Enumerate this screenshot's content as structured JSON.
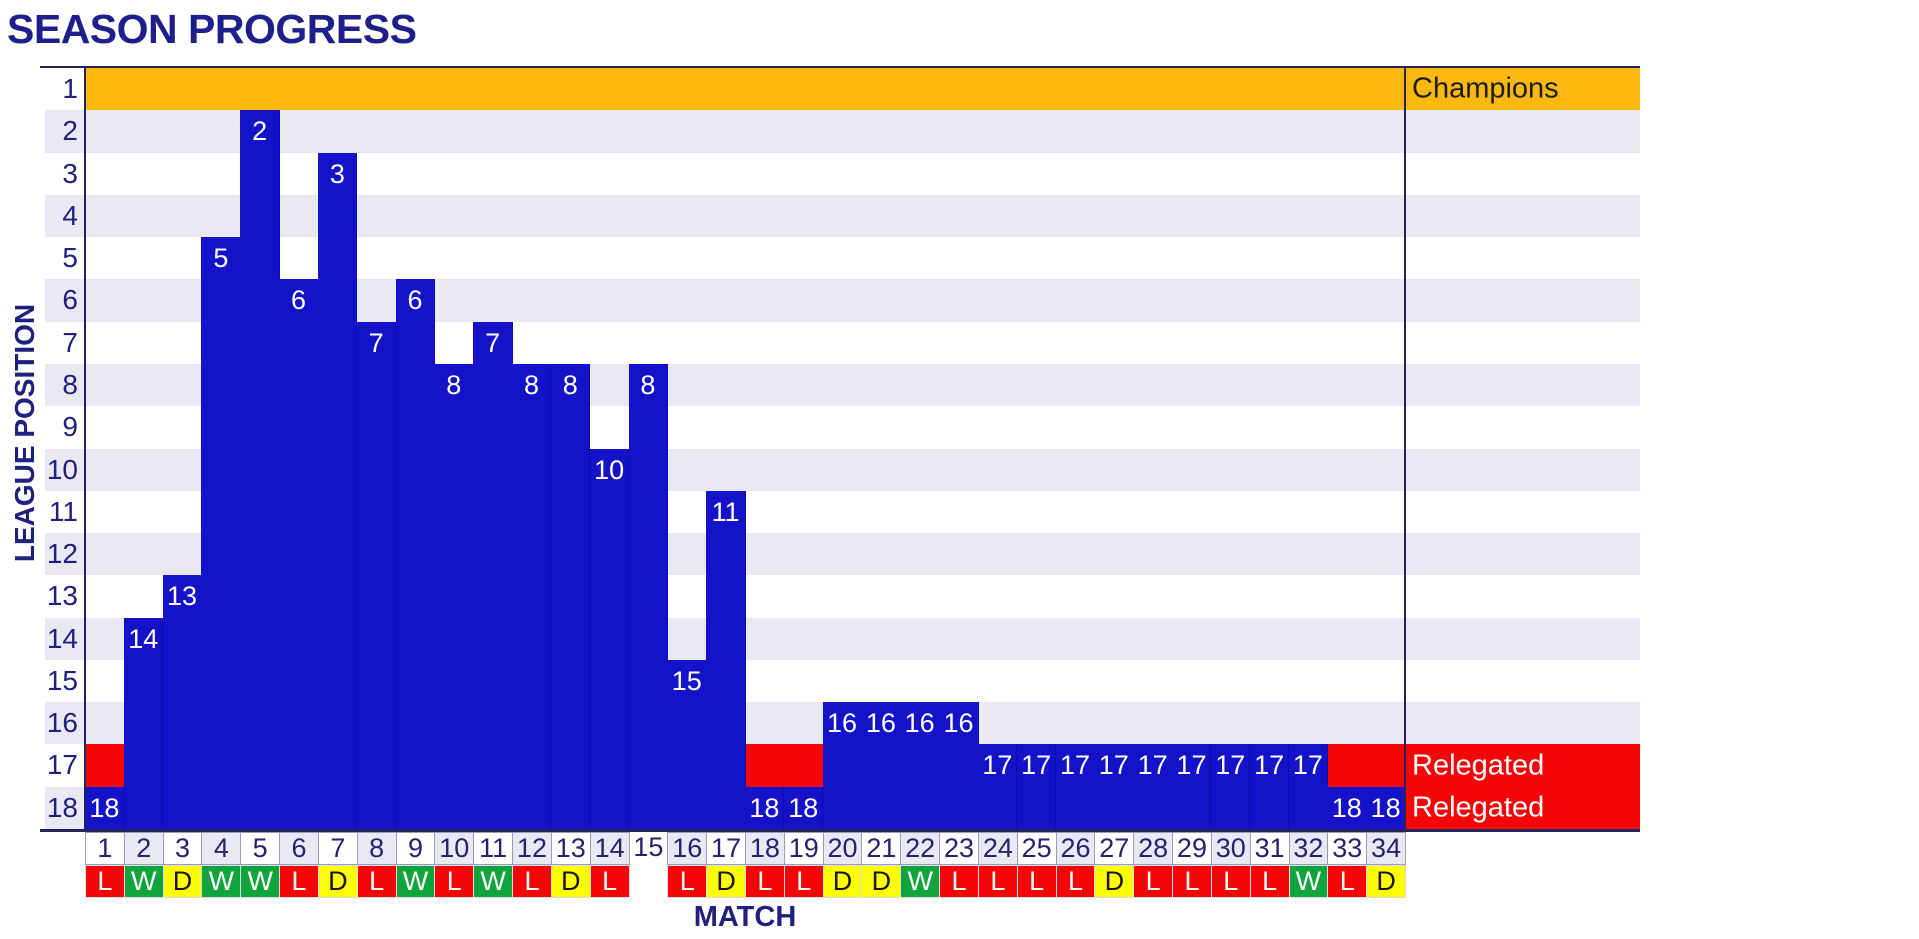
{
  "title": "SEASON PROGRESS",
  "chart_data": {
    "type": "bar",
    "title": "SEASON PROGRESS",
    "xlabel": "MATCH",
    "ylabel": "LEAGUE POSITION",
    "x_axis": {
      "label": "MATCH",
      "ticks": [
        1,
        2,
        3,
        4,
        5,
        6,
        7,
        8,
        9,
        10,
        11,
        12,
        13,
        14,
        15,
        16,
        17,
        18,
        19,
        20,
        21,
        22,
        23,
        24,
        25,
        26,
        27,
        28,
        29,
        30,
        31,
        32,
        33,
        34
      ]
    },
    "y_axis": {
      "label": "LEAGUE POSITION",
      "min": 1,
      "max": 18,
      "inverted": true,
      "ticks": [
        1,
        2,
        3,
        4,
        5,
        6,
        7,
        8,
        9,
        10,
        11,
        12,
        13,
        14,
        15,
        16,
        17,
        18
      ]
    },
    "matches": [
      1,
      2,
      3,
      4,
      5,
      6,
      7,
      8,
      9,
      10,
      11,
      12,
      13,
      14,
      15,
      16,
      17,
      18,
      19,
      20,
      21,
      22,
      23,
      24,
      25,
      26,
      27,
      28,
      29,
      30,
      31,
      32,
      33,
      34
    ],
    "positions": [
      18,
      14,
      13,
      5,
      2,
      6,
      3,
      7,
      6,
      8,
      7,
      8,
      8,
      10,
      8,
      15,
      11,
      18,
      18,
      16,
      16,
      16,
      16,
      17,
      17,
      17,
      17,
      17,
      17,
      17,
      17,
      17,
      18,
      18
    ],
    "results": [
      "L",
      "W",
      "D",
      "W",
      "W",
      "L",
      "D",
      "L",
      "W",
      "L",
      "W",
      "L",
      "D",
      "L",
      "",
      "L",
      "D",
      "L",
      "L",
      "D",
      "D",
      "W",
      "L",
      "L",
      "L",
      "L",
      "D",
      "L",
      "L",
      "L",
      "L",
      "W",
      "L",
      "D"
    ],
    "zones": [
      {
        "label": "Champions",
        "rows": [
          1
        ],
        "band_color": "#fbb80d",
        "label_color": "#1d1d1d"
      },
      {
        "label": "Relegated",
        "rows": [
          17,
          18
        ],
        "band_color": "#f40606",
        "label_color": "#ffffff"
      }
    ],
    "right_labels": [
      {
        "row": 1,
        "text": "Champions",
        "color": "#1d1d1d"
      },
      {
        "row": 17,
        "text": "Relegated",
        "color": "#ffffff"
      },
      {
        "row": 18,
        "text": "Relegated",
        "color": "#ffffff"
      }
    ],
    "legend_position": "none",
    "grid": "row-stripes"
  },
  "colors": {
    "bar": "#1513c9",
    "bar_label": "#ffffff",
    "band_even": "#e9e9f4",
    "band_odd": "#ffffff",
    "champions_band": "#fbb80d",
    "relegated_band": "#f40606",
    "axis_text": "#20207e",
    "border": "#23235f",
    "result_win_bg": "#0fa43c",
    "result_draw_bg": "#ffff00",
    "result_loss_bg": "#f40606",
    "result_win_text": "#ffffff",
    "result_draw_text": "#161616",
    "result_loss_text": "#ffffff"
  }
}
